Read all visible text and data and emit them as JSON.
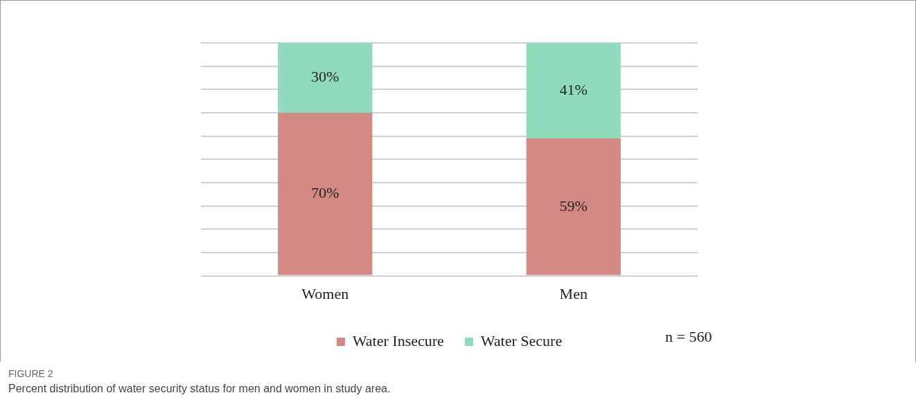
{
  "chart_data": {
    "type": "bar",
    "stacked": true,
    "categories": [
      "Women",
      "Men"
    ],
    "series": [
      {
        "name": "Water Insecure",
        "color": "#d38a85",
        "values": [
          70,
          59
        ],
        "value_labels": [
          "70%",
          "59%"
        ]
      },
      {
        "name": "Water Secure",
        "color": "#8fdcbc",
        "values": [
          30,
          41
        ],
        "value_labels": [
          "30%",
          "41%"
        ]
      }
    ],
    "ylim": [
      0,
      100
    ],
    "yticks": [
      {
        "value": 0,
        "label": null
      },
      {
        "value": 10,
        "label": null
      },
      {
        "value": 20,
        "label": null
      },
      {
        "value": 30,
        "label": null
      },
      {
        "value": 40,
        "label": null
      },
      {
        "value": 50,
        "label": null
      },
      {
        "value": 60,
        "label": null
      },
      {
        "value": 70,
        "label": null
      },
      {
        "value": 80,
        "label": null
      },
      {
        "value": 90,
        "label": null
      },
      {
        "value": 100,
        "label": null
      }
    ],
    "tick_labels": "x",
    "grid": "y",
    "legend": "bottom",
    "annotations": [
      "n = 560",
      "FIGURE 2",
      "Percent distribution of water security status for men and women in study area."
    ]
  }
}
